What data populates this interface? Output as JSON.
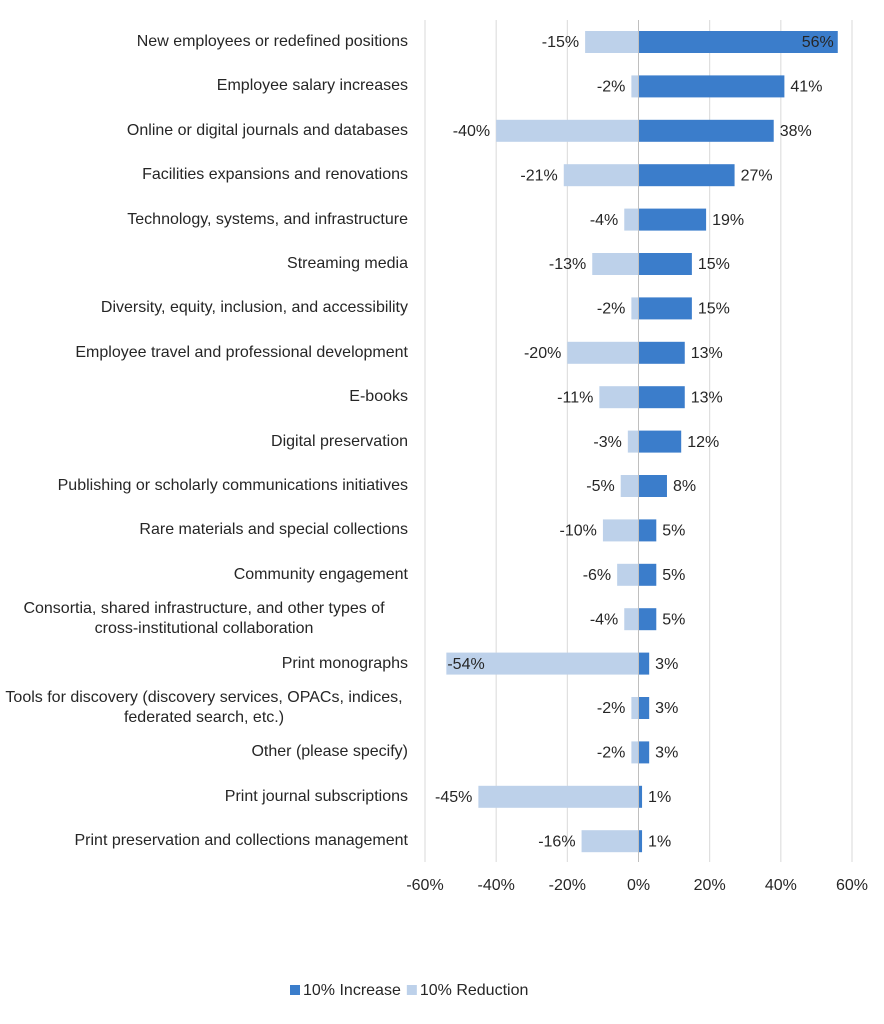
{
  "chart_data": {
    "type": "bar",
    "orientation": "horizontal",
    "categories": [
      "New employees or redefined positions",
      "Employee salary increases",
      "Online or digital journals and databases",
      "Facilities expansions and renovations",
      "Technology, systems, and infrastructure",
      "Streaming media",
      "Diversity, equity, inclusion, and accessibility",
      "Employee travel and professional development",
      "E-books",
      "Digital preservation",
      "Publishing or scholarly communications initiatives",
      "Rare materials and special collections",
      "Community engagement",
      "Consortia, shared infrastructure, and other types of cross-institutional collaboration",
      "Print monographs",
      "Tools for discovery (discovery services, OPACs, indices, federated search, etc.)",
      "Other (please specify)",
      "Print journal subscriptions",
      "Print preservation and collections management"
    ],
    "series": [
      {
        "name": "10% Increase",
        "color": "#3b7dcb",
        "values": [
          56,
          41,
          38,
          27,
          19,
          15,
          15,
          13,
          13,
          12,
          8,
          5,
          5,
          5,
          3,
          3,
          3,
          1,
          1
        ],
        "value_labels": [
          "56%",
          "41%",
          "38%",
          "27%",
          "19%",
          "15%",
          "15%",
          "13%",
          "13%",
          "12%",
          "8%",
          "5%",
          "5%",
          "5%",
          "3%",
          "3%",
          "3%",
          "1%",
          "1%"
        ]
      },
      {
        "name": "10% Reduction",
        "color": "#bdd1ea",
        "values": [
          -15,
          -2,
          -40,
          -21,
          -4,
          -13,
          -2,
          -20,
          -11,
          -3,
          -5,
          -10,
          -6,
          -4,
          -54,
          -2,
          -2,
          -45,
          -16
        ],
        "value_labels": [
          "-15%",
          "-2%",
          "-40%",
          "-21%",
          "-4%",
          "-13%",
          "-2%",
          "-20%",
          "-11%",
          "-3%",
          "-5%",
          "-10%",
          "-6%",
          "-4%",
          "-54%",
          "-2%",
          "-2%",
          "-45%",
          "-16%"
        ]
      }
    ],
    "xlim": [
      -60,
      60
    ],
    "xticks": [
      {
        "value": -60,
        "label": "-60%"
      },
      {
        "value": -40,
        "label": "-40%"
      },
      {
        "value": -20,
        "label": "-20%"
      },
      {
        "value": 0,
        "label": "0%"
      },
      {
        "value": 20,
        "label": "20%"
      },
      {
        "value": 40,
        "label": "40%"
      },
      {
        "value": 60,
        "label": "60%"
      }
    ],
    "grid": true,
    "legend": "bottom"
  }
}
